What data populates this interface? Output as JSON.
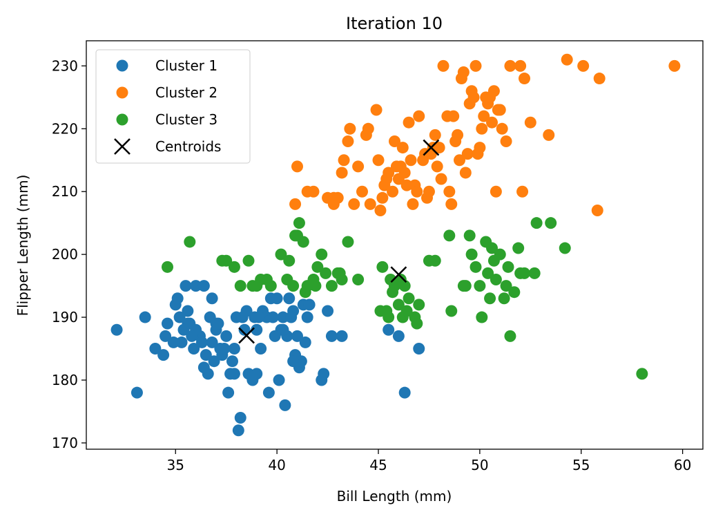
{
  "chart_data": {
    "type": "scatter",
    "title": "Iteration 10",
    "xlabel": "Bill Length (mm)",
    "ylabel": "Flipper Length (mm)",
    "xlim": [
      30.6,
      61.0
    ],
    "ylim": [
      169.0,
      234.0
    ],
    "xticks": [
      35,
      40,
      45,
      50,
      55,
      60
    ],
    "yticks": [
      170,
      180,
      190,
      200,
      210,
      220,
      230
    ],
    "grid": false,
    "legend_position": "top-left",
    "series": [
      {
        "name": "Cluster 1",
        "color": "#1f77b4",
        "marker": "circle",
        "x": [
          32.1,
          33.1,
          33.5,
          34.0,
          34.4,
          34.5,
          34.6,
          35.0,
          35.1,
          35.2,
          35.3,
          35.5,
          35.6,
          35.7,
          35.9,
          36.0,
          36.2,
          36.4,
          36.5,
          36.6,
          36.7,
          36.8,
          37.0,
          37.2,
          37.3,
          37.6,
          37.7,
          37.8,
          37.9,
          38.1,
          38.2,
          38.6,
          38.8,
          39.0,
          39.2,
          39.5,
          39.6,
          39.7,
          40.1,
          40.2,
          40.3,
          40.5,
          40.6,
          40.8,
          40.9,
          41.1,
          41.3,
          41.5,
          42.2,
          42.3,
          42.5,
          42.7,
          43.2,
          45.5,
          46.0,
          46.3,
          47.0,
          35.6,
          36.0,
          36.3,
          37.0,
          37.5,
          38.0,
          38.5,
          39.0,
          39.8,
          40.0,
          40.7,
          41.0,
          41.6,
          36.9,
          37.4,
          38.3,
          39.3,
          40.4,
          35.8,
          34.9,
          36.4,
          37.1,
          38.9,
          39.9,
          41.2,
          41.4,
          40.8,
          40.3,
          38.4,
          37.9,
          36.8,
          35.4,
          39.1
        ],
        "y": [
          188,
          178,
          190,
          185,
          184,
          187,
          189,
          192,
          193,
          190,
          186,
          195,
          191,
          189,
          185,
          195,
          187,
          195,
          184,
          181,
          190,
          193,
          189,
          185,
          184,
          178,
          181,
          183,
          185,
          172,
          174,
          181,
          180,
          181,
          185,
          190,
          178,
          193,
          180,
          188,
          190,
          187,
          193,
          191,
          184,
          182,
          192,
          190,
          180,
          181,
          191,
          187,
          187,
          188,
          187,
          178,
          185,
          189,
          188,
          186,
          188,
          187,
          190,
          191,
          188,
          190,
          193,
          190,
          187,
          192,
          183,
          185,
          190,
          191,
          176,
          187,
          186,
          182,
          189,
          190,
          187,
          183,
          186,
          183,
          188,
          188,
          181,
          186,
          188,
          190
        ]
      },
      {
        "name": "Cluster 2",
        "color": "#ff7f0e",
        "marker": "circle",
        "x": [
          40.9,
          41.0,
          41.5,
          41.8,
          42.5,
          42.8,
          43.0,
          43.2,
          43.5,
          43.6,
          43.8,
          44.0,
          44.4,
          44.5,
          44.9,
          45.1,
          45.2,
          45.3,
          45.5,
          45.7,
          45.8,
          46.0,
          46.1,
          46.2,
          46.4,
          46.5,
          46.8,
          46.9,
          47.0,
          47.2,
          47.4,
          47.5,
          47.6,
          47.8,
          48.1,
          48.2,
          48.4,
          48.5,
          48.6,
          48.7,
          48.8,
          49.0,
          49.1,
          49.2,
          49.3,
          49.5,
          49.6,
          49.7,
          49.8,
          49.9,
          50.0,
          50.1,
          50.2,
          50.4,
          50.5,
          50.7,
          50.8,
          50.9,
          51.1,
          51.3,
          51.5,
          52.0,
          52.1,
          52.2,
          52.5,
          53.4,
          54.3,
          55.1,
          55.8,
          55.9,
          59.6,
          45.4,
          46.6,
          47.3,
          48.0,
          44.2,
          45.0,
          46.7,
          47.9,
          49.4,
          50.6,
          43.3,
          42.8,
          44.6,
          45.9,
          46.3,
          47.7,
          48.9,
          50.3,
          51.0
        ],
        "y": [
          208,
          214,
          210,
          210,
          209,
          208,
          209,
          213,
          218,
          220,
          208,
          214,
          219,
          220,
          223,
          207,
          209,
          211,
          213,
          210,
          218,
          212,
          214,
          217,
          211,
          221,
          211,
          210,
          222,
          215,
          209,
          210,
          216,
          219,
          212,
          230,
          222,
          210,
          208,
          222,
          218,
          215,
          228,
          229,
          213,
          224,
          226,
          225,
          230,
          216,
          217,
          220,
          222,
          224,
          225,
          226,
          210,
          223,
          220,
          218,
          230,
          230,
          210,
          228,
          221,
          219,
          231,
          230,
          207,
          228,
          230,
          212,
          215,
          216,
          217,
          210,
          215,
          208,
          214,
          216,
          221,
          215,
          209,
          208,
          214,
          213,
          217,
          219,
          225,
          223
        ]
      },
      {
        "name": "Cluster 3",
        "color": "#2ca02c",
        "marker": "circle",
        "x": [
          34.6,
          35.7,
          37.3,
          37.5,
          37.9,
          38.2,
          38.6,
          38.8,
          39.2,
          39.5,
          39.7,
          40.2,
          40.6,
          40.9,
          41.1,
          41.3,
          41.4,
          41.5,
          41.8,
          42.0,
          42.4,
          42.7,
          43.1,
          43.2,
          43.5,
          44.0,
          45.2,
          45.4,
          45.5,
          45.7,
          45.8,
          46.0,
          46.2,
          46.4,
          46.5,
          46.8,
          46.9,
          47.5,
          47.8,
          48.5,
          48.6,
          49.3,
          49.5,
          49.6,
          49.8,
          50.0,
          50.1,
          50.3,
          50.5,
          50.6,
          50.8,
          51.0,
          51.3,
          51.4,
          51.5,
          51.7,
          51.9,
          52.0,
          52.2,
          52.7,
          52.8,
          53.5,
          54.2,
          58.0,
          40.5,
          41.0,
          42.2,
          43.0,
          45.1,
          46.1,
          47.0,
          49.2,
          50.4,
          51.2,
          46.3,
          45.6,
          50.7,
          39.0,
          40.8,
          41.9
        ],
        "y": [
          198,
          202,
          199,
          199,
          198,
          195,
          199,
          195,
          196,
          196,
          195,
          200,
          199,
          203,
          205,
          202,
          194,
          195,
          196,
          198,
          197,
          195,
          197,
          196,
          202,
          196,
          198,
          191,
          190,
          194,
          195,
          192,
          190,
          191,
          193,
          190,
          189,
          199,
          199,
          203,
          191,
          195,
          203,
          200,
          198,
          195,
          190,
          202,
          193,
          201,
          196,
          200,
          195,
          198,
          187,
          194,
          201,
          197,
          197,
          197,
          205,
          205,
          201,
          181,
          196,
          203,
          200,
          197,
          191,
          196,
          192,
          195,
          197,
          193,
          195,
          196,
          199,
          195,
          195,
          195
        ]
      },
      {
        "name": "Centroids",
        "color": "#000000",
        "marker": "x",
        "x": [
          38.5,
          47.6,
          46.0
        ],
        "y": [
          187.1,
          217.0,
          196.8
        ]
      }
    ]
  }
}
